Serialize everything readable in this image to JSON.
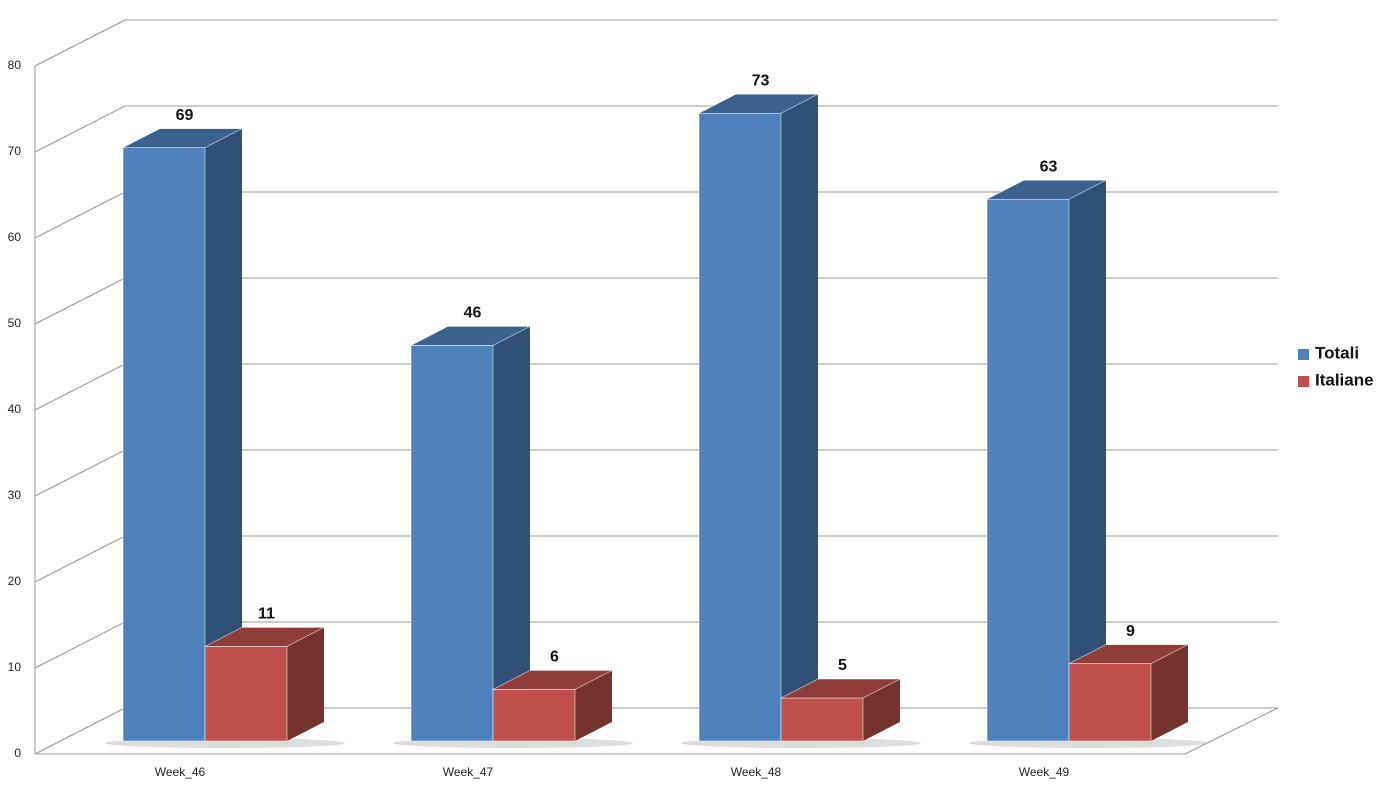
{
  "chart_data": {
    "type": "bar3d",
    "categories": [
      "Week_46",
      "Week_47",
      "Week_48",
      "Week_49"
    ],
    "series": [
      {
        "name": "Totali",
        "color": "#4f81bd",
        "values": [
          69,
          46,
          73,
          63
        ]
      },
      {
        "name": "Italiane",
        "color": "#c0504d",
        "values": [
          11,
          6,
          5,
          9
        ]
      }
    ],
    "ylim": [
      0,
      80
    ],
    "yticks": [
      0,
      10,
      20,
      30,
      40,
      50,
      60,
      70,
      80
    ],
    "grid": true,
    "legend": "right"
  }
}
